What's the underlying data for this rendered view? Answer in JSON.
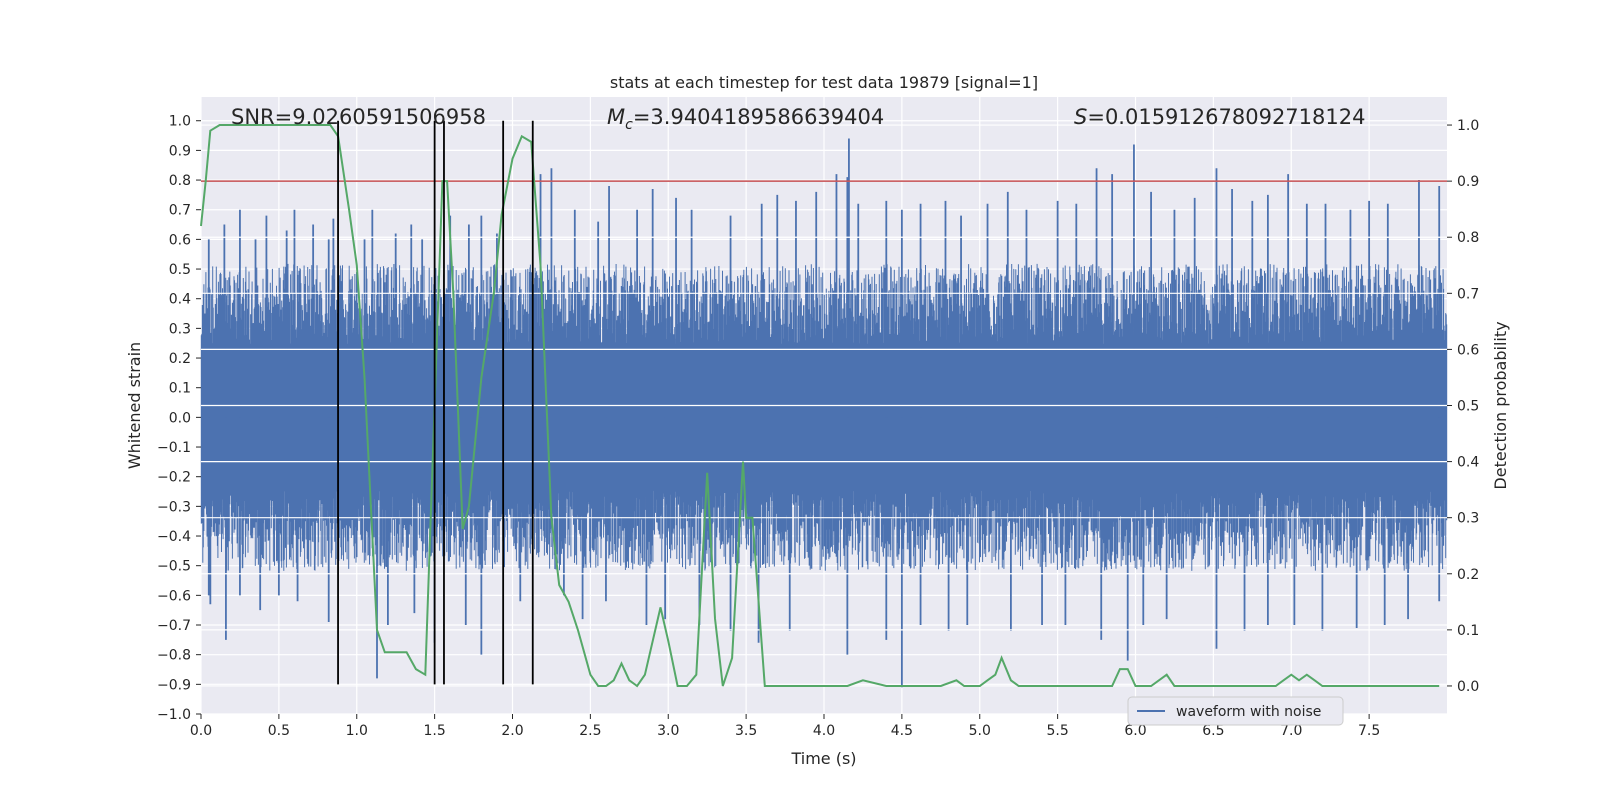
{
  "chart_data": {
    "type": "line",
    "title": "stats at each timestep for test data 19879 [signal=1]",
    "xlabel": "Time (s)",
    "ylabel": "Whitened strain",
    "y2label": "Detection probability",
    "xlim": [
      0.0,
      8.0
    ],
    "ylim": [
      -1.0,
      1.08
    ],
    "y2lim": [
      -0.05,
      1.05
    ],
    "x_ticks": [
      0.0,
      0.5,
      1.0,
      1.5,
      2.0,
      2.5,
      3.0,
      3.5,
      4.0,
      4.5,
      5.0,
      5.5,
      6.0,
      6.5,
      7.0,
      7.5
    ],
    "x_tick_labels": [
      "0.0",
      "0.5",
      "1.0",
      "1.5",
      "2.0",
      "2.5",
      "3.0",
      "3.5",
      "4.0",
      "4.5",
      "5.0",
      "5.5",
      "6.0",
      "6.5",
      "7.0",
      "7.5"
    ],
    "y_ticks": [
      1.0,
      0.9,
      0.8,
      0.7,
      0.6,
      0.5,
      0.4,
      0.3,
      0.2,
      0.1,
      0.0,
      -0.1,
      -0.2,
      -0.3,
      -0.4,
      -0.5,
      -0.6,
      -0.7,
      -0.8,
      -0.9,
      -1.0
    ],
    "y_tick_labels": [
      "1.0",
      "0.9",
      "0.8",
      "0.7",
      "0.6",
      "0.5",
      "0.4",
      "0.3",
      "0.2",
      "0.1",
      "0.0",
      "−0.1",
      "−0.2",
      "−0.3",
      "−0.4",
      "−0.5",
      "−0.6",
      "−0.7",
      "−0.8",
      "−0.9",
      "−1.0"
    ],
    "y2_ticks": [
      1.0,
      0.9,
      0.8,
      0.7,
      0.6,
      0.5,
      0.4,
      0.3,
      0.2,
      0.1,
      0.0
    ],
    "y2_tick_labels": [
      "1.0",
      "0.9",
      "0.8",
      "0.7",
      "0.6",
      "0.5",
      "0.4",
      "0.3",
      "0.2",
      "0.1",
      "0.0"
    ],
    "grid": true,
    "legend": {
      "position": "lower-right",
      "entries": [
        {
          "name": "waveform with noise",
          "color": "#4c72b0"
        }
      ]
    },
    "annotations": [
      {
        "prefix": "SNR",
        "value": "=9.0260591506958"
      },
      {
        "prefix": "M",
        "subscript": "c",
        "value": "=3.9404189586639404"
      },
      {
        "prefix": "S",
        "value": "=0.015912678092718124"
      }
    ],
    "threshold": {
      "y2": 0.9,
      "color": "#c44e52"
    },
    "vlines": {
      "x": [
        0.88,
        1.5,
        1.56,
        1.94,
        2.13
      ],
      "y_range": [
        -0.9,
        1.0
      ],
      "color": "#000000"
    },
    "waveform": {
      "name": "waveform with noise",
      "color": "#4c72b0",
      "envelope_typical": 0.45,
      "spikes_positive": [
        [
          0.05,
          0.6
        ],
        [
          0.15,
          0.65
        ],
        [
          0.25,
          0.7
        ],
        [
          0.35,
          0.6
        ],
        [
          0.42,
          0.68
        ],
        [
          0.55,
          0.63
        ],
        [
          0.6,
          0.7
        ],
        [
          0.72,
          0.65
        ],
        [
          0.82,
          0.6
        ],
        [
          0.85,
          0.67
        ],
        [
          1.05,
          0.6
        ],
        [
          1.1,
          0.7
        ],
        [
          1.25,
          0.62
        ],
        [
          1.35,
          0.65
        ],
        [
          1.42,
          0.6
        ],
        [
          1.6,
          0.68
        ],
        [
          1.72,
          0.65
        ],
        [
          1.8,
          0.68
        ],
        [
          1.9,
          0.62
        ],
        [
          2.18,
          0.82
        ],
        [
          2.25,
          0.84
        ],
        [
          2.4,
          0.7
        ],
        [
          2.55,
          0.66
        ],
        [
          2.62,
          0.78
        ],
        [
          2.8,
          0.7
        ],
        [
          2.9,
          0.77
        ],
        [
          3.05,
          0.74
        ],
        [
          3.15,
          0.7
        ],
        [
          3.4,
          0.68
        ],
        [
          3.6,
          0.72
        ],
        [
          3.7,
          0.75
        ],
        [
          3.82,
          0.73
        ],
        [
          3.95,
          0.76
        ],
        [
          4.08,
          0.82
        ],
        [
          4.15,
          0.81
        ],
        [
          4.16,
          0.94
        ],
        [
          4.22,
          0.72
        ],
        [
          4.4,
          0.73
        ],
        [
          4.5,
          0.7
        ],
        [
          4.62,
          0.72
        ],
        [
          4.78,
          0.73
        ],
        [
          4.88,
          0.68
        ],
        [
          5.05,
          0.72
        ],
        [
          5.18,
          0.76
        ],
        [
          5.3,
          0.7
        ],
        [
          5.5,
          0.73
        ],
        [
          5.62,
          0.72
        ],
        [
          5.75,
          0.84
        ],
        [
          5.85,
          0.82
        ],
        [
          5.99,
          0.92
        ],
        [
          6.1,
          0.76
        ],
        [
          6.25,
          0.7
        ],
        [
          6.38,
          0.74
        ],
        [
          6.52,
          0.84
        ],
        [
          6.62,
          0.77
        ],
        [
          6.75,
          0.73
        ],
        [
          6.85,
          0.75
        ],
        [
          6.98,
          0.82
        ],
        [
          7.1,
          0.72
        ],
        [
          7.22,
          0.72
        ],
        [
          7.38,
          0.7
        ],
        [
          7.5,
          0.73
        ],
        [
          7.62,
          0.72
        ],
        [
          7.82,
          0.8
        ],
        [
          7.95,
          0.78
        ]
      ],
      "spikes_negative": [
        [
          0.05,
          -0.6
        ],
        [
          0.06,
          -0.63
        ],
        [
          0.16,
          -0.75
        ],
        [
          0.25,
          -0.6
        ],
        [
          0.38,
          -0.65
        ],
        [
          0.5,
          -0.6
        ],
        [
          0.62,
          -0.62
        ],
        [
          0.82,
          -0.69
        ],
        [
          1.13,
          -0.88
        ],
        [
          1.2,
          -0.7
        ],
        [
          1.37,
          -0.66
        ],
        [
          1.5,
          -0.76
        ],
        [
          1.7,
          -0.7
        ],
        [
          1.8,
          -0.8
        ],
        [
          2.05,
          -0.62
        ],
        [
          2.33,
          -0.6
        ],
        [
          2.45,
          -0.68
        ],
        [
          2.6,
          -0.62
        ],
        [
          2.86,
          -0.7
        ],
        [
          2.98,
          -0.68
        ],
        [
          3.2,
          -0.7
        ],
        [
          3.4,
          -0.72
        ],
        [
          3.58,
          -0.76
        ],
        [
          3.78,
          -0.72
        ],
        [
          4.15,
          -0.8
        ],
        [
          4.4,
          -0.75
        ],
        [
          4.5,
          -0.91
        ],
        [
          4.62,
          -0.7
        ],
        [
          4.8,
          -0.72
        ],
        [
          4.92,
          -0.7
        ],
        [
          5.2,
          -0.72
        ],
        [
          5.4,
          -0.7
        ],
        [
          5.55,
          -0.7
        ],
        [
          5.78,
          -0.75
        ],
        [
          5.95,
          -0.82
        ],
        [
          6.05,
          -0.7
        ],
        [
          6.2,
          -0.68
        ],
        [
          6.52,
          -0.78
        ],
        [
          6.7,
          -0.72
        ],
        [
          6.85,
          -0.7
        ],
        [
          7.02,
          -0.7
        ],
        [
          7.2,
          -0.72
        ],
        [
          7.42,
          -0.71
        ],
        [
          7.6,
          -0.7
        ],
        [
          7.75,
          -0.68
        ],
        [
          7.95,
          -0.62
        ]
      ]
    },
    "series": [
      {
        "name": "",
        "color": "#55a868",
        "axis": "right",
        "x": [
          0.0,
          0.03,
          0.06,
          0.12,
          0.2,
          0.4,
          0.6,
          0.8,
          0.83,
          0.88,
          0.95,
          1.0,
          1.05,
          1.13,
          1.18,
          1.25,
          1.32,
          1.38,
          1.44,
          1.5,
          1.55,
          1.58,
          1.62,
          1.68,
          1.72,
          1.8,
          1.88,
          1.93,
          2.0,
          2.06,
          2.12,
          2.18,
          2.25,
          2.3,
          2.36,
          2.42,
          2.5,
          2.55,
          2.6,
          2.65,
          2.7,
          2.75,
          2.8,
          2.85,
          2.95,
          3.0,
          3.06,
          3.12,
          3.18,
          3.25,
          3.3,
          3.35,
          3.41,
          3.48,
          3.5,
          3.54,
          3.62,
          3.7,
          3.8,
          3.9,
          4.0,
          4.15,
          4.25,
          4.4,
          4.5,
          4.6,
          4.75,
          4.85,
          4.9,
          5.0,
          5.05,
          5.1,
          5.14,
          5.2,
          5.25,
          5.4,
          5.55,
          5.65,
          5.72,
          5.78,
          5.85,
          5.9,
          5.95,
          6.0,
          6.05,
          6.1,
          6.2,
          6.25,
          6.3,
          6.4,
          6.5,
          6.6,
          6.7,
          6.8,
          6.9,
          6.95,
          7.0,
          7.05,
          7.1,
          7.15,
          7.2,
          7.3,
          7.4,
          7.5,
          7.6,
          7.7,
          7.8,
          7.95
        ],
        "values": [
          0.82,
          0.9,
          0.99,
          1.0,
          1.0,
          1.0,
          1.0,
          1.0,
          1.0,
          0.98,
          0.85,
          0.75,
          0.55,
          0.1,
          0.06,
          0.06,
          0.06,
          0.03,
          0.02,
          0.5,
          0.9,
          0.9,
          0.7,
          0.28,
          0.32,
          0.55,
          0.7,
          0.84,
          0.94,
          0.98,
          0.97,
          0.75,
          0.3,
          0.18,
          0.15,
          0.1,
          0.02,
          0.0,
          0.0,
          0.01,
          0.04,
          0.01,
          0.0,
          0.02,
          0.14,
          0.08,
          0.0,
          0.0,
          0.02,
          0.38,
          0.12,
          0.0,
          0.05,
          0.4,
          0.3,
          0.3,
          0.0,
          0.0,
          0.0,
          0.0,
          0.0,
          0.0,
          0.01,
          0.0,
          0.0,
          0.0,
          0.0,
          0.01,
          0.0,
          0.0,
          0.01,
          0.02,
          0.05,
          0.01,
          0.0,
          0.0,
          0.0,
          0.0,
          0.0,
          0.0,
          0.0,
          0.03,
          0.03,
          0.0,
          0.0,
          0.0,
          0.02,
          0.0,
          0.0,
          0.0,
          0.0,
          0.0,
          0.0,
          0.0,
          0.0,
          0.01,
          0.02,
          0.01,
          0.02,
          0.01,
          0.0,
          0.0,
          0.0,
          0.0,
          0.0,
          0.0,
          0.0,
          0.0
        ]
      }
    ]
  }
}
